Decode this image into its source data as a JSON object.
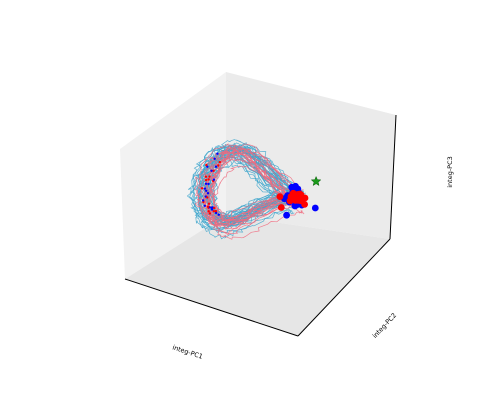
{
  "chart_data": {
    "type": "line",
    "projection": "3d",
    "xlabel": "integ-PC1",
    "ylabel": "integ-PC2",
    "zlabel": "integ-PC3",
    "xlim": [
      -3,
      3
    ],
    "ylim": [
      -3,
      3
    ],
    "zlim": [
      -3,
      3
    ],
    "grid": false,
    "ticks_visible": false,
    "colors": {
      "trajectory_a": "#3ea6cc",
      "trajectory_b": "#f06a7e",
      "endpoints_a": "#0000ff",
      "endpoints_b": "#ff0000",
      "star": "#1a9a1a"
    },
    "loop_shape": {
      "loop_center": [
        -1.0,
        0.0,
        0.1
      ],
      "radius_pc1": 0.9,
      "radius_pc2": 1.0,
      "tilt_pc3": 0.85,
      "cluster_center": [
        0.95,
        0.55,
        0.0
      ]
    },
    "series": [
      {
        "trajectory_count": 38,
        "phase_offset": 0.0
      },
      {
        "trajectory_count": 16,
        "phase_offset": 0.45
      }
    ],
    "endpoint_scatter": [
      {
        "count": 26,
        "spread": 0.18
      },
      {
        "count": 22,
        "spread": 0.16
      }
    ],
    "star_marker": {
      "x": 1.35,
      "y": 1.05,
      "z": 0.55
    }
  }
}
